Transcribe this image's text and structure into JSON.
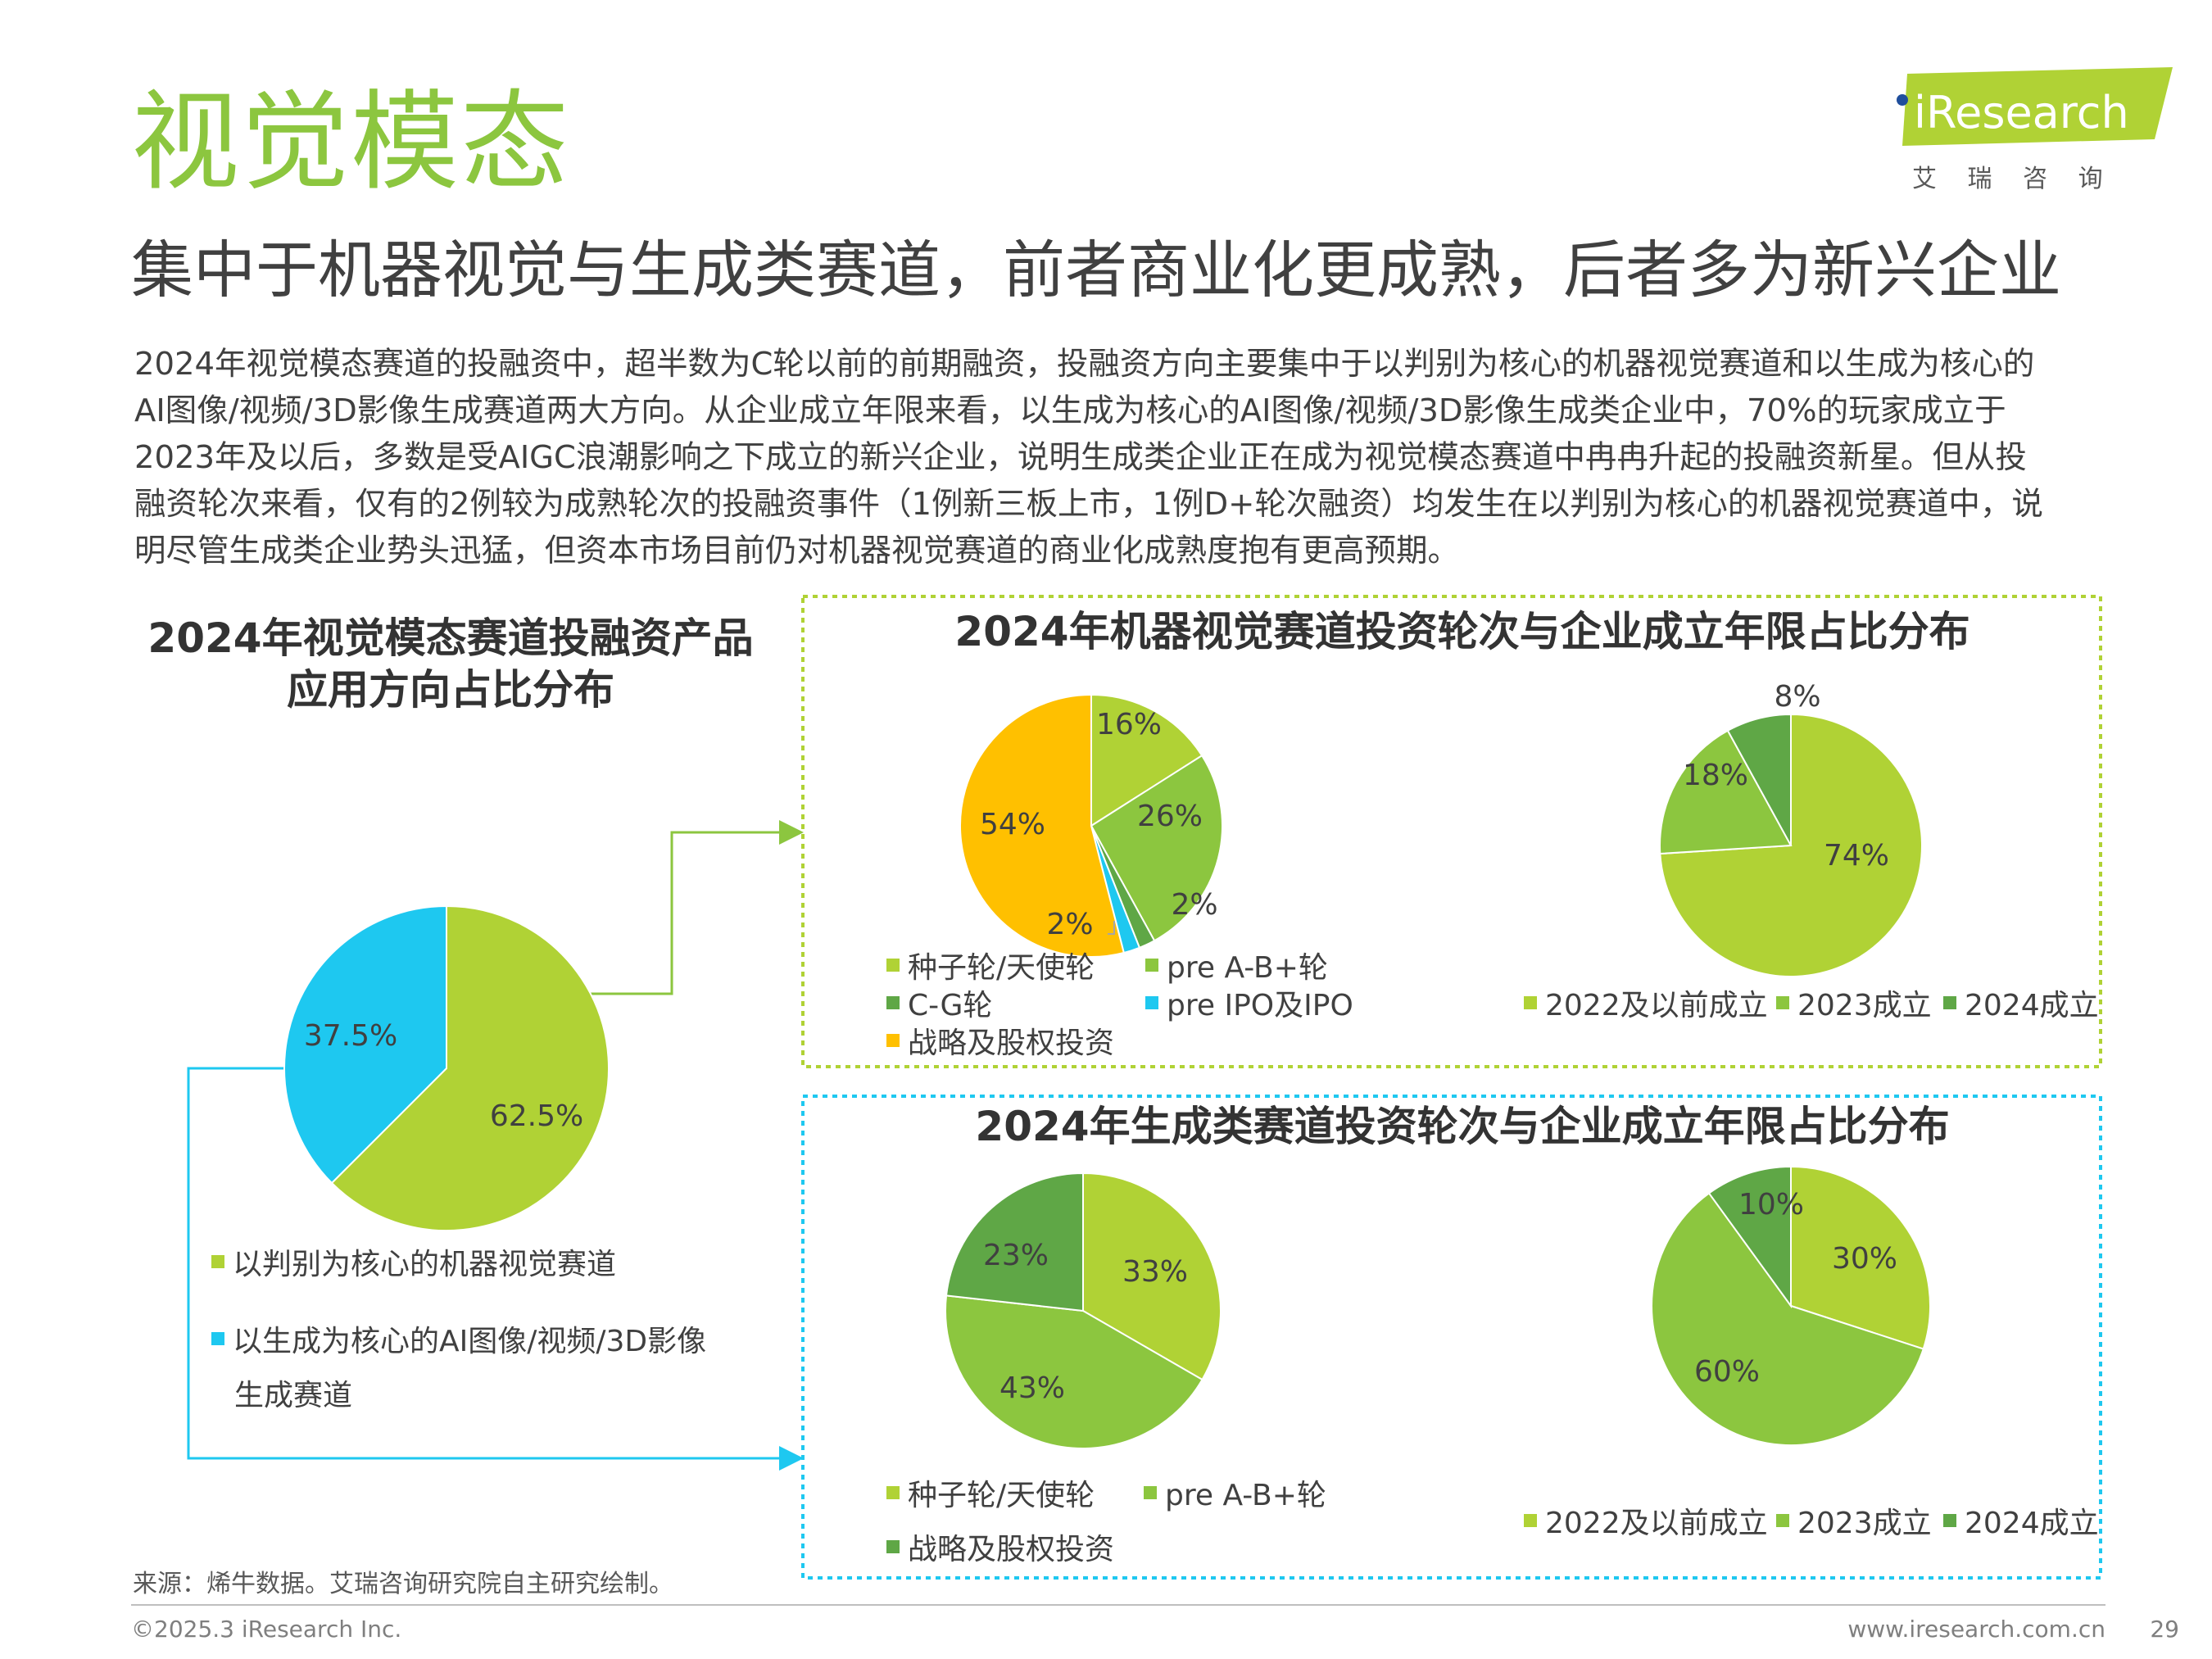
{
  "header": {
    "title": "视觉模态",
    "subtitle": "集中于机器视觉与生成类赛道，前者商业化更成熟，后者多为新兴企业",
    "logo_text": "iResearch",
    "logo_cn": "艾 瑞 咨 询"
  },
  "body": {
    "lines": [
      "2024年视觉模态赛道的投融资中，超半数为C轮以前的前期融资，投融资方向主要集中于以判别为核心的机器视觉赛道和以生成为核心的",
      "AI图像/视频/3D影像生成赛道两大方向。从企业成立年限来看，以生成为核心的AI图像/视频/3D影像生成类企业中，70%的玩家成立于",
      "2023年及以后，多数是受AIGC浪潮影响之下成立的新兴企业，说明生成类企业正在成为视觉模态赛道中冉冉升起的投融资新星。但从投",
      "融资轮次来看，仅有的2例较为成熟轮次的投融资事件（1例新三板上市，1例D+轮次融资）均发生在以判别为核心的机器视觉赛道中，说",
      "明尽管生成类企业势头迅猛，但资本市场目前仍对机器视觉赛道的商业化成熟度抱有更高预期。"
    ]
  },
  "colors": {
    "lime": "#b0d235",
    "green": "#8cc63f",
    "dark_green": "#5fa746",
    "cyan": "#1ec8f0",
    "yellow": "#ffc000",
    "title_green": "#8cc63f"
  },
  "chart_data": [
    {
      "id": "app-direction",
      "type": "pie",
      "title": "2024年视觉模态赛道投融资产品应用方向占比分布",
      "series": [
        {
          "name": "以判别为核心的机器视觉赛道",
          "value": 62.5,
          "label": "62.5%",
          "color": "#b0d235"
        },
        {
          "name": "以生成为核心的AI图像/视频/3D影像生成赛道",
          "value": 37.5,
          "label": "37.5%",
          "color": "#1ec8f0"
        }
      ],
      "legend": [
        {
          "label": "以判别为核心的机器视觉赛道",
          "color": "#b0d235"
        },
        {
          "label": "以生成为核心的AI图像/视频/3D影像",
          "label2": "生成赛道",
          "color": "#1ec8f0"
        }
      ]
    },
    {
      "id": "mv-rounds",
      "type": "pie",
      "group_title": "2024年机器视觉赛道投资轮次与企业成立年限占比分布",
      "series": [
        {
          "name": "种子轮/天使轮",
          "value": 16,
          "label": "16%",
          "color": "#b0d235"
        },
        {
          "name": "pre A-B+轮",
          "value": 26,
          "label": "26%",
          "color": "#8cc63f"
        },
        {
          "name": "C-G轮",
          "value": 2,
          "label": "2%",
          "color": "#5fa746"
        },
        {
          "name": "pre IPO及IPO",
          "value": 2,
          "label": "2%",
          "color": "#1ec8f0"
        },
        {
          "name": "战略及股权投资",
          "value": 54,
          "label": "54%",
          "color": "#ffc000"
        }
      ]
    },
    {
      "id": "mv-years",
      "type": "pie",
      "series": [
        {
          "name": "2022及以前成立",
          "value": 74,
          "label": "74%",
          "color": "#b0d235"
        },
        {
          "name": "2023成立",
          "value": 18,
          "label": "18%",
          "color": "#8cc63f"
        },
        {
          "name": "2024成立",
          "value": 8,
          "label": "8%",
          "color": "#5fa746"
        }
      ]
    },
    {
      "id": "gen-rounds",
      "type": "pie",
      "group_title": "2024年生成类赛道投资轮次与企业成立年限占比分布",
      "series": [
        {
          "name": "种子轮/天使轮",
          "value": 33,
          "label": "33%",
          "color": "#b0d235"
        },
        {
          "name": "pre A-B+轮",
          "value": 43,
          "label": "43%",
          "color": "#8cc63f"
        },
        {
          "name": "战略及股权投资",
          "value": 23,
          "label": "23%",
          "color": "#5fa746"
        }
      ]
    },
    {
      "id": "gen-years",
      "type": "pie",
      "series": [
        {
          "name": "2022及以前成立",
          "value": 30,
          "label": "30%",
          "color": "#b0d235"
        },
        {
          "name": "2023成立",
          "value": 60,
          "label": "60%",
          "color": "#8cc63f"
        },
        {
          "name": "2024成立",
          "value": 10,
          "label": "10%",
          "color": "#5fa746"
        }
      ]
    }
  ],
  "footer": {
    "source": "来源：烯牛数据。艾瑞咨询研究院自主研究绘制。",
    "copyright": "©2025.3 iResearch Inc.",
    "site": "www.iresearch.com.cn",
    "page": "29"
  }
}
